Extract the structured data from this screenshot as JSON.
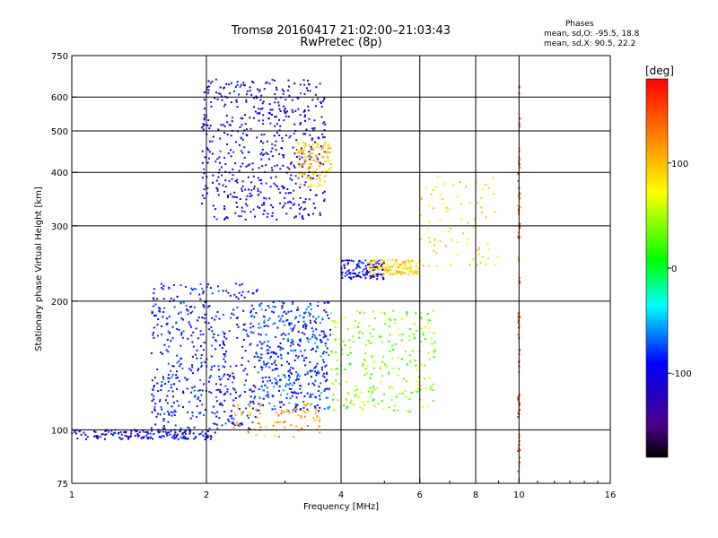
{
  "header": {
    "title_line1": "Tromsø 20160417 21:02:00–21:03:43",
    "title_line2": "RwPretec (8p)"
  },
  "phase_info": {
    "title": "Phases",
    "stat_o": "mean, sd,O: -95.5, 18.8",
    "stat_x": "mean, sd,X:  90.5, 22.2"
  },
  "colorbar": {
    "label": "[deg]",
    "ticks": [
      "100",
      "0",
      "-100"
    ],
    "tick_values": [
      100,
      0,
      -100
    ],
    "range": [
      -180,
      180
    ]
  },
  "chart_data": {
    "type": "scatter",
    "title": "Tromsø 20160417 21:02:00–21:03:43",
    "subtitle": "RwPretec (8p)",
    "xlabel": "Frequency [MHz]",
    "ylabel": "Stationary phase Virtual Height [km]",
    "xscale": "log",
    "yscale": "log",
    "xlim": [
      1,
      16
    ],
    "ylim": [
      75,
      750
    ],
    "x_ticks": [
      1,
      2,
      4,
      6,
      8,
      10,
      16
    ],
    "x_tick_labels": [
      "1",
      "2",
      "4",
      "6",
      "8",
      "10",
      "16"
    ],
    "y_ticks": [
      75,
      100,
      200,
      300,
      400,
      500,
      600,
      750
    ],
    "y_tick_labels": [
      "75",
      "100",
      "200",
      "300",
      "400",
      "500",
      "600",
      "750"
    ],
    "grid": true,
    "color_scale": "phase in degrees, -180 (black/violet) to +180 (red)",
    "point_groups": [
      {
        "name_hint": "E-layer trace",
        "x_range": [
          1.0,
          2.1
        ],
        "y_range": [
          95,
          100
        ],
        "phase_deg": -105,
        "count": 160
      },
      {
        "name_hint": "E/Es spread echoes",
        "x_range": [
          1.5,
          2.6
        ],
        "y_range": [
          100,
          220
        ],
        "phase_deg": -95,
        "count": 500
      },
      {
        "name_hint": "spread echoes",
        "x_range": [
          2.6,
          3.8
        ],
        "y_range": [
          110,
          200
        ],
        "phase_deg": -80,
        "count": 420
      },
      {
        "name_hint": "yellow low echoes",
        "x_range": [
          2.3,
          3.6
        ],
        "y_range": [
          96,
          115
        ],
        "phase_deg": 110,
        "count": 90
      },
      {
        "name_hint": "mixed echoes",
        "x_range": [
          3.8,
          6.5
        ],
        "y_range": [
          110,
          190
        ],
        "phase_deg": 40,
        "count": 260
      },
      {
        "name_hint": "F-layer O trace",
        "x_range": [
          1.95,
          3.7
        ],
        "y_range": [
          310,
          660
        ],
        "phase_deg": -105,
        "count": 560
      },
      {
        "name_hint": "F-layer X trace",
        "x_range": [
          3.2,
          3.8
        ],
        "y_range": [
          370,
          470
        ],
        "phase_deg": 95,
        "count": 120
      },
      {
        "name_hint": "F2 trace",
        "x_range": [
          4.0,
          5.0
        ],
        "y_range": [
          225,
          250
        ],
        "phase_deg": -100,
        "count": 120
      },
      {
        "name_hint": "F2 X trace",
        "x_range": [
          4.6,
          6.0
        ],
        "y_range": [
          230,
          250
        ],
        "phase_deg": 90,
        "count": 120
      },
      {
        "name_hint": "high F2",
        "x_range": [
          6.0,
          9.0
        ],
        "y_range": [
          240,
          400
        ],
        "phase_deg": 80,
        "count": 80
      },
      {
        "name_hint": "10 MHz interference line",
        "x_range": [
          9.95,
          10.05
        ],
        "y_range": [
          80,
          640
        ],
        "phase_deg": 150,
        "count": 90
      }
    ]
  }
}
